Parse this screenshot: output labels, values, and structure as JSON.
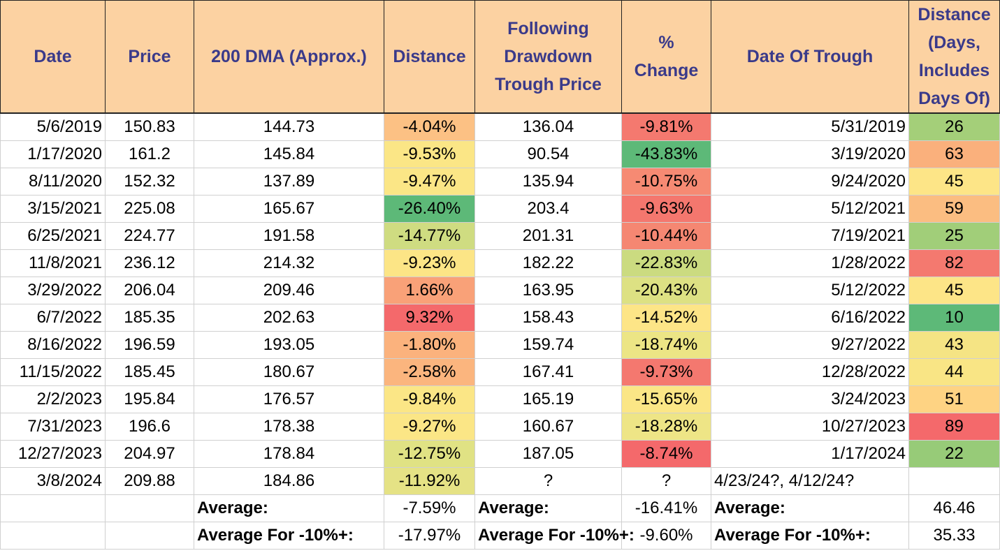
{
  "headers": [
    {
      "key": "date",
      "label": "Date"
    },
    {
      "key": "price",
      "label": "Price"
    },
    {
      "key": "dma",
      "label": "200 DMA (Approx.)"
    },
    {
      "key": "distance",
      "label": "Distance"
    },
    {
      "key": "trough_price",
      "label": "Following Drawdown Trough Price"
    },
    {
      "key": "pct_change",
      "label": "% Change"
    },
    {
      "key": "trough_date",
      "label": "Date Of Trough"
    },
    {
      "key": "days",
      "label": "Distance (Days, Includes Days Of)"
    }
  ],
  "rows": [
    {
      "date": "5/6/2019",
      "price": "150.83",
      "dma": "144.73",
      "distance": "-4.04%",
      "trough_price": "136.04",
      "pct_change": "-9.81%",
      "trough_date": "5/31/2019",
      "days": "26",
      "colors": {
        "distance": "#fcc184",
        "pct_change": "#f4796f",
        "days": "#a4cf79"
      }
    },
    {
      "date": "1/17/2020",
      "price": "161.2",
      "dma": "145.84",
      "distance": "-9.53%",
      "trough_price": "90.54",
      "pct_change": "-43.83%",
      "trough_date": "3/19/2020",
      "days": "63",
      "colors": {
        "distance": "#fbe686",
        "pct_change": "#5db978",
        "days": "#fab07c"
      }
    },
    {
      "date": "8/11/2020",
      "price": "152.32",
      "dma": "137.89",
      "distance": "-9.47%",
      "trough_price": "135.94",
      "pct_change": "-10.75%",
      "trough_date": "9/24/2020",
      "days": "45",
      "colors": {
        "distance": "#fbe686",
        "pct_change": "#f68a73",
        "days": "#fde587"
      }
    },
    {
      "date": "3/15/2021",
      "price": "225.08",
      "dma": "165.67",
      "distance": "-26.40%",
      "trough_price": "203.4",
      "pct_change": "-9.63%",
      "trough_date": "5/12/2021",
      "days": "59",
      "colors": {
        "distance": "#5db978",
        "pct_change": "#f4776e",
        "days": "#fbbd81"
      }
    },
    {
      "date": "6/25/2021",
      "price": "224.77",
      "dma": "191.58",
      "distance": "-14.77%",
      "trough_price": "201.31",
      "pct_change": "-10.44%",
      "trough_date": "7/19/2021",
      "days": "25",
      "colors": {
        "distance": "#cfdc81",
        "pct_change": "#f58772",
        "days": "#a1ce79"
      }
    },
    {
      "date": "11/8/2021",
      "price": "236.12",
      "dma": "214.32",
      "distance": "-9.23%",
      "trough_price": "182.22",
      "pct_change": "-22.83%",
      "trough_date": "1/28/2022",
      "days": "82",
      "colors": {
        "distance": "#fce586",
        "pct_change": "#cbdb80",
        "days": "#f4796f"
      }
    },
    {
      "date": "3/29/2022",
      "price": "206.04",
      "dma": "209.46",
      "distance": "1.66%",
      "trough_price": "163.95",
      "pct_change": "-20.43%",
      "trough_date": "5/12/2022",
      "days": "45",
      "colors": {
        "distance": "#f9a178",
        "pct_change": "#dde183",
        "days": "#fde587"
      }
    },
    {
      "date": "6/7/2022",
      "price": "185.35",
      "dma": "202.63",
      "distance": "9.32%",
      "trough_price": "158.43",
      "pct_change": "-14.52%",
      "trough_date": "6/16/2022",
      "days": "10",
      "colors": {
        "distance": "#f4696b",
        "pct_change": "#fde587",
        "days": "#5db978"
      }
    },
    {
      "date": "8/16/2022",
      "price": "196.59",
      "dma": "193.05",
      "distance": "-1.80%",
      "trough_price": "159.74",
      "pct_change": "-18.74%",
      "trough_date": "9/27/2022",
      "days": "43",
      "colors": {
        "distance": "#fbb27d",
        "pct_change": "#ece585",
        "days": "#f5e484"
      }
    },
    {
      "date": "11/15/2022",
      "price": "185.45",
      "dma": "180.67",
      "distance": "-2.58%",
      "trough_price": "167.41",
      "pct_change": "-9.73%",
      "trough_date": "12/28/2022",
      "days": "44",
      "colors": {
        "distance": "#fbb57e",
        "pct_change": "#f4786f",
        "days": "#f9e585"
      }
    },
    {
      "date": "2/2/2023",
      "price": "195.84",
      "dma": "176.57",
      "distance": "-9.84%",
      "trough_price": "165.19",
      "pct_change": "-15.65%",
      "trough_date": "3/24/2023",
      "days": "51",
      "colors": {
        "distance": "#fbe686",
        "pct_change": "#fbe686",
        "days": "#fed383"
      }
    },
    {
      "date": "7/31/2023",
      "price": "196.6",
      "dma": "178.38",
      "distance": "-9.27%",
      "trough_price": "160.67",
      "pct_change": "-18.28%",
      "trough_date": "10/27/2023",
      "days": "89",
      "colors": {
        "distance": "#fbe686",
        "pct_change": "#eee586",
        "days": "#f4696b"
      }
    },
    {
      "date": "12/27/2023",
      "price": "204.97",
      "dma": "178.84",
      "distance": "-12.75%",
      "trough_price": "187.05",
      "pct_change": "-8.74%",
      "trough_date": "1/17/2024",
      "days": "22",
      "colors": {
        "distance": "#e0e284",
        "pct_change": "#f4696b",
        "days": "#97cb78"
      }
    },
    {
      "date": "3/8/2024",
      "price": "209.88",
      "dma": "184.86",
      "distance": "-11.92%",
      "trough_price": "?",
      "pct_change": "?",
      "trough_date": "4/23/24?, 4/12/24?",
      "days": "",
      "colors": {
        "distance": "#e5e285",
        "pct_change": "#ffffff",
        "days": "#ffffff"
      }
    }
  ],
  "summary": [
    {
      "dma_label": "Average:",
      "distance": "-7.59%",
      "trough_label": "Average:",
      "pct_change": "-16.41%",
      "trough_date_label": "Average:",
      "days": "46.46"
    },
    {
      "dma_label": "Average For -10%+:",
      "distance": "-17.97%",
      "trough_label": "Average For -10%+:",
      "pct_change": "-9.60%",
      "trough_date_label": "Average For -10%+:",
      "days": "35.33"
    }
  ]
}
